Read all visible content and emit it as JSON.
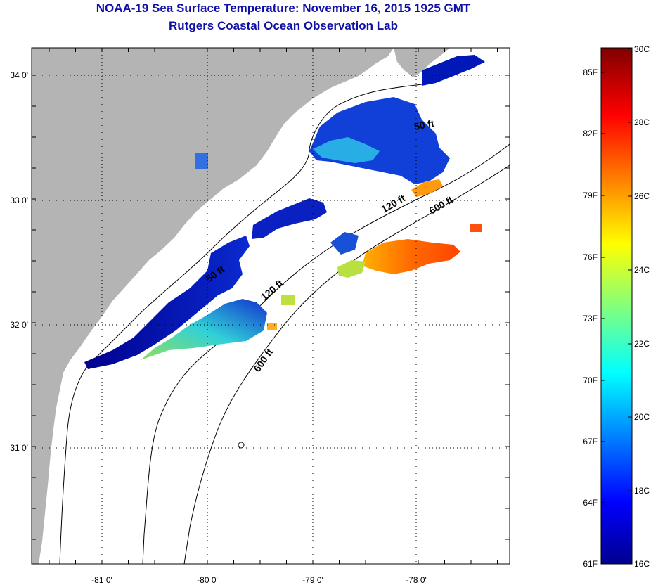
{
  "title": {
    "line1": "NOAA-19 Sea Surface Temperature:  November 16, 2015 1925 GMT",
    "line2": "Rutgers Coastal Ocean Observation Lab"
  },
  "map": {
    "lon_ticks": [
      "-81 0'",
      "-80 0'",
      "-79 0'",
      "-78 0'"
    ],
    "lat_ticks": [
      "34 0'",
      "33 0'",
      "32 0'",
      "31 0'"
    ],
    "depth_labels": [
      "50 ft",
      "120 ft",
      "600 ft",
      "120 ft",
      "600 ft",
      "50 ft"
    ],
    "colors": {
      "land": "#b4b4b4",
      "ocean": "#ffffff"
    }
  },
  "colorbar": {
    "f_labels": [
      "85F",
      "82F",
      "79F",
      "76F",
      "73F",
      "70F",
      "67F",
      "64F",
      "61F"
    ],
    "c_labels": [
      "30C",
      "28C",
      "26C",
      "24C",
      "22C",
      "20C",
      "18C",
      "16C"
    ],
    "colormap": "jet"
  }
}
